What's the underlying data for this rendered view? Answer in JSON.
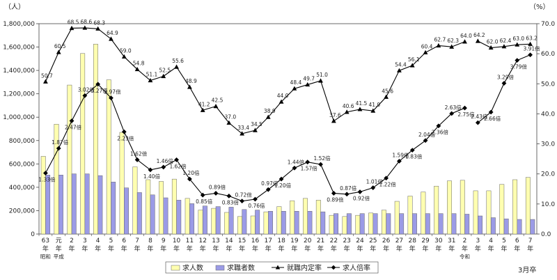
{
  "chart_data": {
    "type": "bar",
    "y_unit_left": "（人）",
    "y_unit_right": "（%）",
    "ylim_left": [
      0,
      1800000
    ],
    "ylim_right": [
      0,
      70
    ],
    "y_ticks_left": [
      "0",
      "200,000",
      "400,000",
      "600,000",
      "800,000",
      "1,000,000",
      "1,200,000",
      "1,400,000",
      "1,600,000",
      "1,800,000"
    ],
    "y_ticks_right": [
      "0.0",
      "10.0",
      "20.0",
      "30.0",
      "40.0",
      "50.0",
      "60.0",
      "70.0"
    ],
    "categories": [
      "63",
      "元",
      "2",
      "3",
      "4",
      "5",
      "6",
      "7",
      "8",
      "9",
      "10",
      "11",
      "12",
      "13",
      "14",
      "15",
      "16",
      "17",
      "18",
      "19",
      "20",
      "21",
      "22",
      "23",
      "24",
      "25",
      "26",
      "27",
      "28",
      "29",
      "30",
      "31",
      "2",
      "3",
      "4",
      "5",
      "6",
      "7"
    ],
    "year_char": "年",
    "era_labels": [
      {
        "text": "昭和",
        "index": 0
      },
      {
        "text": "平成",
        "index": 1
      },
      {
        "text": "令和",
        "index": 32
      }
    ],
    "footer_note": "3月卒",
    "series": [
      {
        "name": "求人数",
        "kind": "bar",
        "color": "#ffffb0",
        "values": [
          665000,
          940000,
          1275000,
          1545000,
          1625000,
          1320000,
          870000,
          575000,
          465000,
          450000,
          470000,
          305000,
          205000,
          220000,
          185000,
          150000,
          155000,
          190000,
          235000,
          285000,
          305000,
          290000,
          160000,
          150000,
          160000,
          180000,
          205000,
          280000,
          325000,
          360000,
          410000,
          455000,
          460000,
          370000,
          370000,
          425000,
          465000,
          485000
        ]
      },
      {
        "name": "求職者数",
        "kind": "bar",
        "color": "#9b9be6",
        "values": [
          505000,
          505000,
          515000,
          515000,
          500000,
          445000,
          395000,
          355000,
          335000,
          310000,
          290000,
          260000,
          240000,
          235000,
          230000,
          210000,
          205000,
          195000,
          195000,
          195000,
          195000,
          190000,
          175000,
          175000,
          175000,
          175000,
          175000,
          175000,
          175000,
          175000,
          175000,
          175000,
          170000,
          155000,
          140000,
          130000,
          125000,
          125000
        ]
      },
      {
        "name": "就職内定率",
        "kind": "line",
        "marker": "triangle",
        "axis": "right",
        "values": [
          50.7,
          60.5,
          68.5,
          68.6,
          68.3,
          64.9,
          59.0,
          54.8,
          51.1,
          52.5,
          55.6,
          48.9,
          41.2,
          42.5,
          37.0,
          33.4,
          34.5,
          38.9,
          44.0,
          48.4,
          49.7,
          51.0,
          37.6,
          40.6,
          41.5,
          41.0,
          45.6,
          54.4,
          56.1,
          60.4,
          62.7,
          62.3,
          64.0,
          64.2,
          62.0,
          62.4,
          63.0,
          63.2
        ],
        "labels": [
          "50.7",
          "60.5",
          "68.5",
          "68.6",
          "68.3",
          "64.9",
          "59.0",
          "54.8",
          "51.1",
          "52.5",
          "55.6",
          "48.9",
          "41.2",
          "42.5",
          "37.0",
          "33.4",
          "34.5",
          "38.9",
          "44.0",
          "48.4",
          "49.7",
          "51.0",
          "37.6",
          "40.6",
          "41.5",
          "41.0",
          "45.6",
          "54.4",
          "56.1",
          "60.4",
          "62.7",
          "62.3",
          "64.0",
          "64.2",
          "62.0",
          "62.4",
          "63.0",
          "63.2"
        ]
      },
      {
        "name": "求人倍率",
        "kind": "line",
        "marker": "diamond",
        "axis": "ratio",
        "values": [
          1.33,
          1.87,
          2.47,
          3.02,
          3.27,
          2.97,
          2.23,
          1.62,
          1.4,
          1.46,
          1.62,
          1.2,
          0.85,
          0.89,
          0.83,
          0.72,
          0.76,
          0.97,
          1.2,
          1.44,
          1.57,
          1.52,
          0.89,
          0.87,
          0.92,
          1.01,
          1.22,
          1.59,
          1.83,
          2.04,
          2.36,
          2.63,
          2.75,
          2.43,
          2.66,
          3.29,
          3.79,
          3.91
        ],
        "labels": [
          "1.33倍",
          "1.87倍",
          "2.47倍",
          "3.02倍",
          "3.27倍",
          "2.97倍",
          "2.23倍",
          "1.62倍",
          "1.40倍",
          "1.46倍",
          "1.62倍",
          "1.20倍",
          "0.85倍",
          "0.89倍",
          "0.83倍",
          "0.72倍",
          "0.76倍",
          "0.97倍",
          "1.20倍",
          "1.44倍",
          "1.57倍",
          "1.52倍",
          "0.89倍",
          "0.87倍",
          "0.92倍",
          "1.01倍",
          "1.22倍",
          "1.59倍",
          "1.83倍",
          "2.04倍",
          "2.36倍",
          "2.63倍",
          "2.75倍",
          "2.43倍",
          "2.66倍",
          "3.29倍",
          "3.79倍",
          "3.91倍"
        ]
      }
    ],
    "line_breaks_after_index": 32,
    "legend_position": "bottom-center"
  }
}
